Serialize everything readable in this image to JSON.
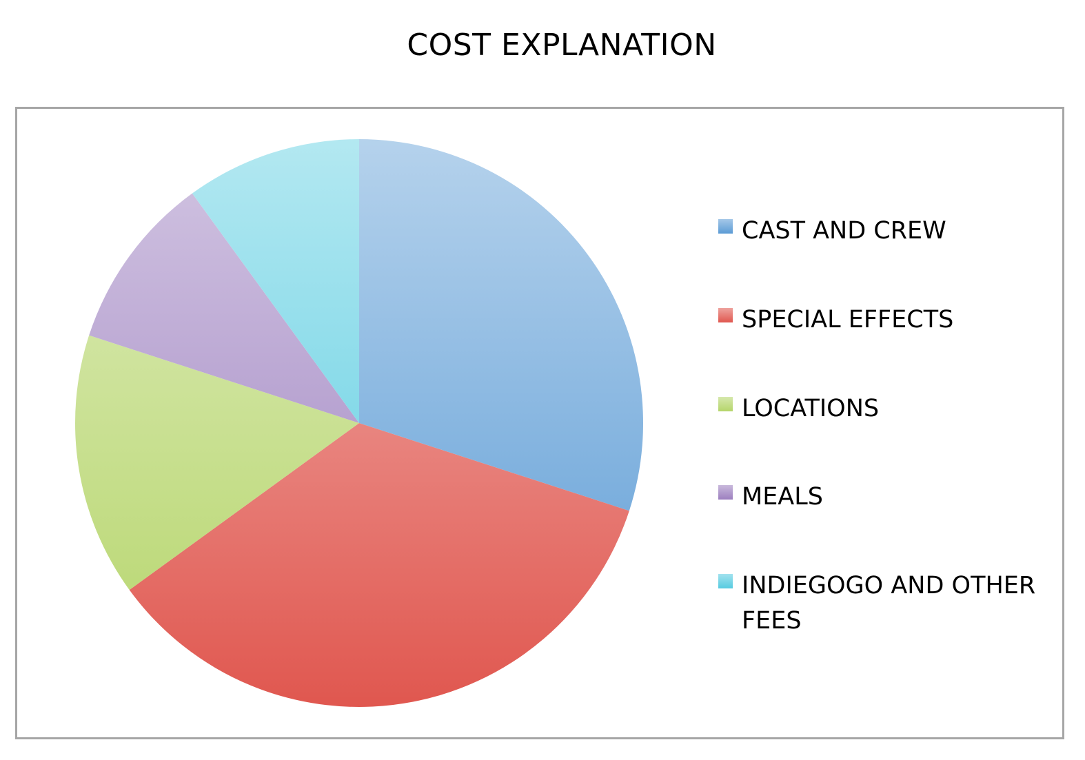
{
  "chart_data": {
    "type": "pie",
    "title": "COST EXPLANATION",
    "categories": [
      "CAST AND CREW",
      "SPECIAL EFFECTS",
      "LOCATIONS",
      "MEALS",
      "INDIEGOGO AND OTHER FEES"
    ],
    "values": [
      30,
      35,
      15,
      10,
      10
    ],
    "colors": [
      "#5b9bd5",
      "#e0574f",
      "#b5d56a",
      "#9c7fbf",
      "#56cbe0"
    ],
    "legend": "right"
  }
}
